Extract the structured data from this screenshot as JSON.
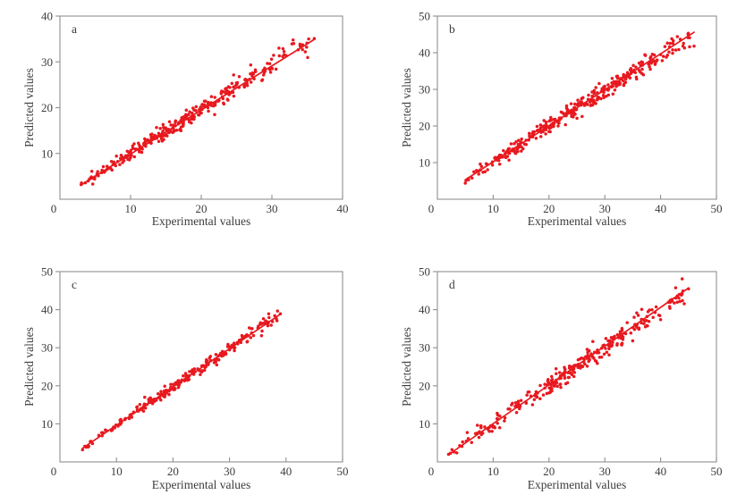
{
  "figure": {
    "name": "predicted-vs-experimental-four-panel-figure",
    "background": "#ffffff",
    "marker_color": "#e8191f",
    "fit_line_color": "#e8191f",
    "axis_color": "#8f8f8f",
    "text_color": "#3c3c3c",
    "marker_radius": 1.75,
    "fit_line_width": 1.7
  },
  "chart_data": [
    {
      "type": "scatter",
      "panel_label": "a",
      "title": "",
      "xlabel": "Experimental values",
      "ylabel": "Predicted values",
      "xlim": [
        0,
        40
      ],
      "ylim": [
        0,
        40
      ],
      "xticks": [
        0,
        10,
        20,
        30,
        40
      ],
      "yticks": [
        10,
        20,
        30,
        40
      ],
      "grid": false,
      "legend": null,
      "fit_line": {
        "x1": 3,
        "y1": 3.1,
        "x2": 36,
        "y2": 34.9
      },
      "scatter": {
        "n": 300,
        "x_min": 3,
        "x_max": 36,
        "slope": 0.97,
        "intercept": 0.25,
        "noise_min": 0.5,
        "noise_max": 1.4,
        "seed": 101
      },
      "anchor_points": [
        [
          3,
          3.2
        ],
        [
          3.6,
          3.6
        ],
        [
          4,
          4.0
        ],
        [
          4.6,
          4.6
        ],
        [
          33,
          34.8
        ],
        [
          34,
          33.4
        ],
        [
          35.2,
          35.0
        ],
        [
          36,
          35.1
        ],
        [
          32,
          31.4
        ],
        [
          30,
          28.6
        ],
        [
          8,
          9.4
        ],
        [
          12,
          13.2
        ],
        [
          27,
          29.3
        ],
        [
          31,
          33.0
        ]
      ]
    },
    {
      "type": "scatter",
      "panel_label": "b",
      "title": "",
      "xlabel": "Experimental values",
      "ylabel": "Predicted values",
      "xlim": [
        0,
        50
      ],
      "ylim": [
        0,
        50
      ],
      "xticks": [
        0,
        10,
        20,
        30,
        40,
        50
      ],
      "yticks": [
        10,
        20,
        30,
        40,
        50
      ],
      "grid": false,
      "legend": null,
      "fit_line": {
        "x1": 5,
        "y1": 5.3,
        "x2": 46,
        "y2": 45.6
      },
      "scatter": {
        "n": 345,
        "x_min": 5,
        "x_max": 46,
        "slope": 0.97,
        "intercept": 0.6,
        "noise_min": 0.9,
        "noise_max": 1.5,
        "seed": 202
      },
      "anchor_points": [
        [
          5,
          4.4
        ],
        [
          5.6,
          5.3
        ],
        [
          6.2,
          5.8
        ],
        [
          43,
          44.4
        ],
        [
          44,
          41.8
        ],
        [
          45.2,
          41.6
        ],
        [
          46,
          41.8
        ],
        [
          41.5,
          40.2
        ],
        [
          39,
          36.8
        ],
        [
          40.5,
          39.0
        ],
        [
          42,
          43.8
        ],
        [
          38,
          36.2
        ]
      ]
    },
    {
      "type": "scatter",
      "panel_label": "c",
      "title": "",
      "xlabel": "Experimental values",
      "ylabel": "Predicted values",
      "xlim": [
        0,
        50
      ],
      "ylim": [
        0,
        50
      ],
      "xticks": [
        0,
        10,
        20,
        30,
        40,
        50
      ],
      "yticks": [
        10,
        20,
        30,
        40,
        50
      ],
      "grid": false,
      "legend": null,
      "fit_line": {
        "x1": 4,
        "y1": 3.6,
        "x2": 39,
        "y2": 38.8
      },
      "scatter": {
        "n": 235,
        "x_min": 4,
        "x_max": 39,
        "slope": 1.005,
        "intercept": -0.35,
        "noise_min": 0.5,
        "noise_max": 0.9,
        "seed": 303
      },
      "anchor_points": [
        [
          4,
          3.2
        ],
        [
          4.4,
          4.1
        ],
        [
          5,
          3.9
        ],
        [
          37,
          37.9
        ],
        [
          38,
          38.4
        ],
        [
          39,
          38.9
        ],
        [
          38.4,
          37.1
        ],
        [
          33.5,
          35.2
        ],
        [
          15,
          17.0
        ],
        [
          16,
          16.8
        ],
        [
          34,
          35.0
        ],
        [
          36,
          37.6
        ]
      ]
    },
    {
      "type": "scatter",
      "panel_label": "d",
      "title": "",
      "xlabel": "Experimental values",
      "ylabel": "Predicted values",
      "xlim": [
        0,
        50
      ],
      "ylim": [
        0,
        50
      ],
      "xticks": [
        0,
        10,
        20,
        30,
        40,
        50
      ],
      "yticks": [
        10,
        20,
        30,
        40,
        50
      ],
      "grid": false,
      "legend": null,
      "fit_line": {
        "x1": 2,
        "y1": 1.9,
        "x2": 45,
        "y2": 45.7
      },
      "scatter": {
        "n": 275,
        "x_min": 2,
        "x_max": 45,
        "slope": 1.0,
        "intercept": 0.1,
        "noise_min": 1.0,
        "noise_max": 1.6,
        "seed": 404
      },
      "anchor_points": [
        [
          2,
          2.0
        ],
        [
          3,
          2.6
        ],
        [
          4,
          4.3
        ],
        [
          43,
          43.6
        ],
        [
          44,
          44.9
        ],
        [
          45,
          45.5
        ],
        [
          40,
          37.4
        ],
        [
          38,
          39.9
        ],
        [
          35,
          31.8
        ],
        [
          36,
          38.5
        ],
        [
          34,
          36.6
        ],
        [
          33,
          30.9
        ]
      ]
    }
  ]
}
